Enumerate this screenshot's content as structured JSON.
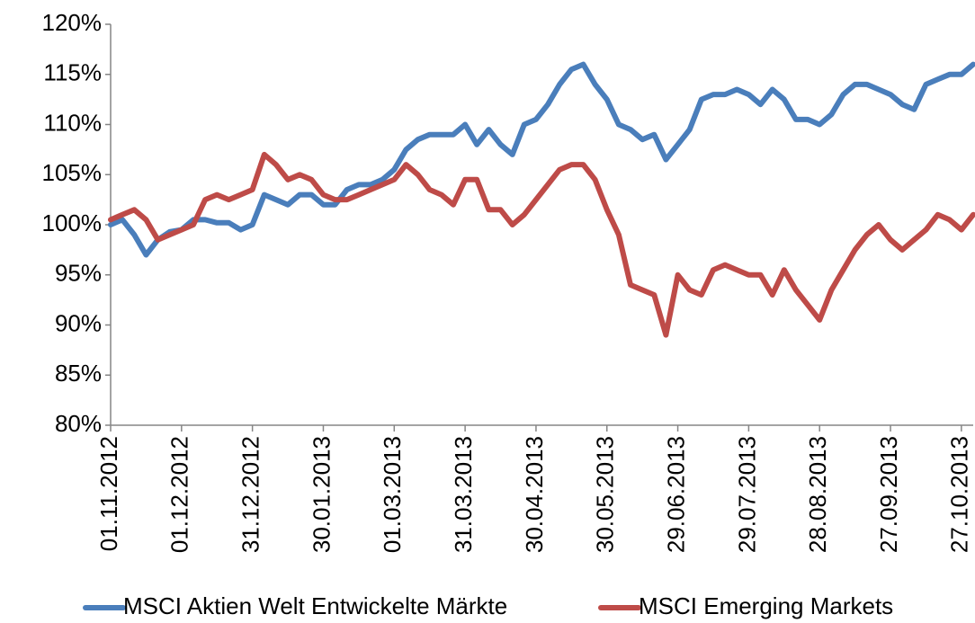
{
  "chart_data": {
    "type": "line",
    "categories": [
      "01.11.2012",
      null,
      null,
      null,
      null,
      null,
      "01.12.2012",
      null,
      null,
      null,
      null,
      null,
      "31.12.2012",
      null,
      null,
      null,
      null,
      null,
      "30.01.2013",
      null,
      null,
      null,
      null,
      null,
      "01.03.2013",
      null,
      null,
      null,
      null,
      null,
      "31.03.2013",
      null,
      null,
      null,
      null,
      null,
      "30.04.2013",
      null,
      null,
      null,
      null,
      null,
      "30.05.2013",
      null,
      null,
      null,
      null,
      null,
      "29.06.2013",
      null,
      null,
      null,
      null,
      null,
      "29.07.2013",
      null,
      null,
      null,
      null,
      null,
      "28.08.2013",
      null,
      null,
      null,
      null,
      null,
      "27.09.2013",
      null,
      null,
      null,
      null,
      null,
      "27.10.2013",
      null
    ],
    "series": [
      {
        "name": "MSCI Aktien Welt Entwickelte Märkte",
        "color": "#4a7ebb",
        "values": [
          100,
          100.5,
          99,
          97,
          98.5,
          99.3,
          99.5,
          100.5,
          100.5,
          100.2,
          100.2,
          99.5,
          100,
          103,
          102.5,
          102,
          103,
          103,
          102,
          102,
          103.5,
          104,
          104,
          104.5,
          105.5,
          107.5,
          108.5,
          109,
          109,
          109,
          110,
          108,
          109.5,
          108,
          107,
          110,
          110.5,
          112,
          114,
          115.5,
          116,
          114,
          112.5,
          110,
          109.5,
          108.5,
          109,
          106.5,
          108,
          109.5,
          112.5,
          113,
          113,
          113.5,
          113,
          112,
          113.5,
          112.5,
          110.5,
          110.5,
          110,
          111,
          113,
          114,
          114,
          113.5,
          113,
          112,
          111.5,
          114,
          114.5,
          115,
          115,
          116
        ]
      },
      {
        "name": "MSCI Emerging Markets",
        "color": "#be4b48",
        "values": [
          100.5,
          101,
          101.5,
          100.5,
          98.5,
          99,
          99.5,
          100,
          102.5,
          103,
          102.5,
          103,
          103.5,
          107,
          106,
          104.5,
          105,
          104.5,
          103,
          102.5,
          102.5,
          103,
          103.5,
          104,
          104.5,
          106,
          105,
          103.5,
          103,
          102,
          104.5,
          104.5,
          101.5,
          101.5,
          100,
          101,
          102.5,
          104,
          105.5,
          106,
          106,
          104.5,
          101.5,
          99,
          94,
          93.5,
          93,
          89,
          95,
          93.5,
          93,
          95.5,
          96,
          95.5,
          95,
          95,
          93,
          95.5,
          93.5,
          92,
          90.5,
          93.5,
          95.5,
          97.5,
          99,
          100,
          98.5,
          97.5,
          98.5,
          99.5,
          101,
          100.5,
          99.5,
          101
        ]
      }
    ],
    "ylim": [
      80,
      120
    ],
    "yticks": [
      {
        "value": 80,
        "label": "80%"
      },
      {
        "value": 85,
        "label": "85%"
      },
      {
        "value": 90,
        "label": "90%"
      },
      {
        "value": 95,
        "label": "95%"
      },
      {
        "value": 100,
        "label": "100%"
      },
      {
        "value": 105,
        "label": "105%"
      },
      {
        "value": 110,
        "label": "110%"
      },
      {
        "value": 115,
        "label": "115%"
      },
      {
        "value": 120,
        "label": "120%"
      }
    ],
    "grid": false,
    "legend": "bottom"
  }
}
